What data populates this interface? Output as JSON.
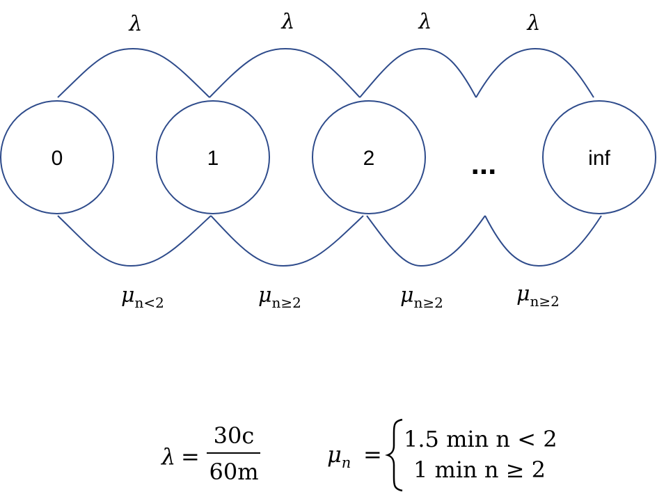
{
  "states": [
    "0",
    "1",
    "2",
    "inf"
  ],
  "ellipsis": "...",
  "arrival_labels": [
    "λ",
    "λ",
    "λ",
    "λ"
  ],
  "service_labels": [
    {
      "symbol": "μ",
      "sub": "n<2"
    },
    {
      "symbol": "μ",
      "sub": "n≥2"
    },
    {
      "symbol": "μ",
      "sub": "n≥2"
    },
    {
      "symbol": "μ",
      "sub": "n≥2"
    }
  ],
  "formula_lambda": {
    "lhs": "λ",
    "eq": "=",
    "numerator": "30c",
    "denominator": "60m"
  },
  "formula_mu": {
    "lhs": "μ",
    "lhs_sub": "n",
    "eq": "=",
    "case1": "1.5 min n < 2",
    "case2": "1 min n ≥ 2"
  },
  "colors": {
    "stroke": "#2e4b8b",
    "text": "#000000"
  }
}
